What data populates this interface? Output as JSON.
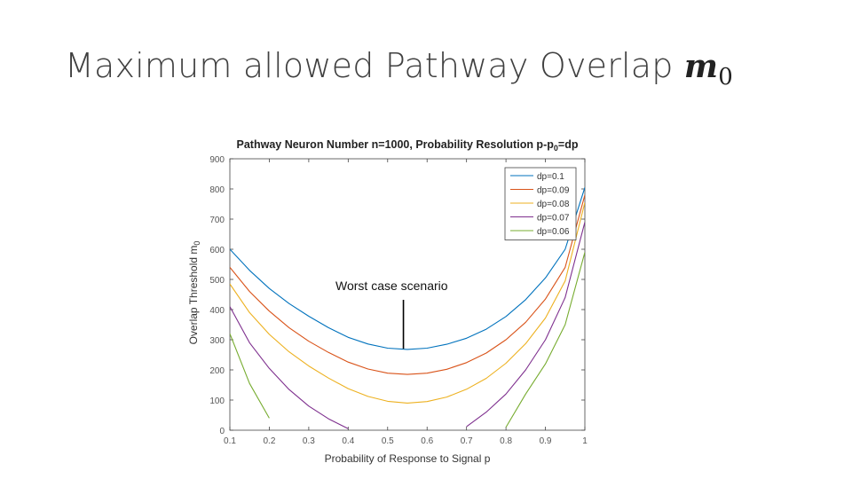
{
  "slide": {
    "title_text": "Maximum allowed Pathway Overlap ",
    "title_math_var": "m",
    "title_math_sub": "0"
  },
  "chart_data": {
    "type": "line",
    "title": "Pathway Neuron Number n=1000, Probability Resolution p-p",
    "title_sub": "0",
    "title_suffix": "=dp",
    "xlabel": "Probability of Response to Signal p",
    "ylabel": "Overlap Threshold m",
    "ylabel_sub": "0",
    "xlim": [
      0.1,
      1
    ],
    "ylim": [
      0,
      900
    ],
    "x_ticks": [
      "0.1",
      "0.2",
      "0.3",
      "0.4",
      "0.5",
      "0.6",
      "0.7",
      "0.8",
      "0.9",
      "1"
    ],
    "y_ticks": [
      "0",
      "100",
      "200",
      "300",
      "400",
      "500",
      "600",
      "700",
      "800",
      "900"
    ],
    "grid": false,
    "legend_position": "top-right",
    "annotation": {
      "text": "Worst case scenario",
      "x": 0.54,
      "y": 270
    },
    "x": [
      0.1,
      0.15,
      0.2,
      0.25,
      0.3,
      0.35,
      0.4,
      0.45,
      0.5,
      0.55,
      0.6,
      0.65,
      0.7,
      0.75,
      0.8,
      0.85,
      0.9,
      0.95,
      1.0
    ],
    "series": [
      {
        "name": "dp=0.1",
        "color": "#0072BD",
        "values": [
          600,
          530,
          470,
          420,
          378,
          340,
          308,
          286,
          272,
          268,
          272,
          285,
          305,
          335,
          377,
          433,
          505,
          600,
          805
        ]
      },
      {
        "name": "dp=0.09",
        "color": "#D95319",
        "values": [
          540,
          460,
          395,
          340,
          295,
          258,
          226,
          203,
          189,
          185,
          189,
          202,
          224,
          256,
          300,
          358,
          435,
          540,
          780
        ]
      },
      {
        "name": "dp=0.08",
        "color": "#EDB120",
        "values": [
          485,
          390,
          318,
          260,
          213,
          173,
          138,
          112,
          96,
          90,
          95,
          110,
          136,
          172,
          222,
          287,
          372,
          495,
          755
        ]
      },
      {
        "name": "dp=0.07",
        "color": "#7E2F8E",
        "values": [
          410,
          290,
          205,
          135,
          80,
          38,
          5,
          null,
          null,
          null,
          null,
          null,
          12,
          60,
          120,
          200,
          300,
          440,
          690
        ]
      },
      {
        "name": "dp=0.06",
        "color": "#77AC30",
        "values": [
          320,
          155,
          40,
          null,
          null,
          null,
          null,
          null,
          null,
          null,
          null,
          null,
          null,
          null,
          10,
          120,
          220,
          350,
          590
        ]
      }
    ]
  }
}
